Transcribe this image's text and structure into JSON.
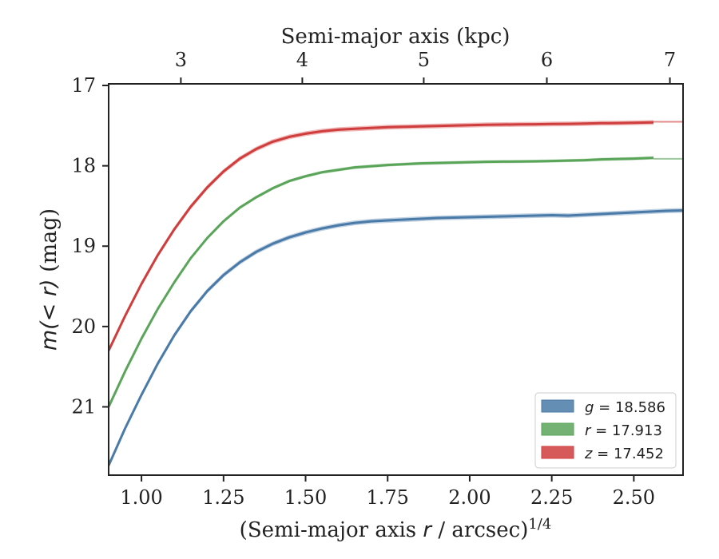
{
  "chart_data": {
    "type": "line",
    "xlabel_bottom": "(Semi-major axis r / arcsec)1/4",
    "xlabel_bottom_parts": {
      "pre": "(Semi-major axis ",
      "var": "r",
      "post": " / arcsec)",
      "sup": "1/4"
    },
    "xlabel_top": "Semi-major axis (kpc)",
    "ylabel": "m(< r) (mag)",
    "ylabel_parts": {
      "math": "m(< r)",
      "unit": " (mag)"
    },
    "xlim": [
      0.9,
      2.65
    ],
    "ylim": [
      21.85,
      16.98
    ],
    "y_inverted": true,
    "x_ticks": [
      1.0,
      1.25,
      1.5,
      1.75,
      2.0,
      2.25,
      2.5
    ],
    "x_tick_labels": [
      "1.00",
      "1.25",
      "1.50",
      "1.75",
      "2.00",
      "2.25",
      "2.50"
    ],
    "y_ticks": [
      17,
      18,
      19,
      20,
      21
    ],
    "y_tick_labels": [
      "17",
      "18",
      "19",
      "20",
      "21"
    ],
    "top_ticks_kpc": [
      3,
      4,
      5,
      6,
      7
    ],
    "top_tick_labels": [
      "3",
      "4",
      "5",
      "6",
      "7"
    ],
    "top_tick_positions_x": [
      1.12,
      1.49,
      1.86,
      2.235,
      2.61
    ],
    "legend_position": "bottom-right",
    "grid": false,
    "series": [
      {
        "name": "g = 18.586",
        "legend_var": "g",
        "legend_value": "= 18.586",
        "color": "#4a7aa8",
        "x": [
          0.9,
          0.95,
          1.0,
          1.05,
          1.1,
          1.15,
          1.2,
          1.25,
          1.3,
          1.35,
          1.4,
          1.45,
          1.5,
          1.55,
          1.6,
          1.65,
          1.7,
          1.75,
          1.8,
          1.85,
          1.9,
          1.95,
          2.0,
          2.05,
          2.1,
          2.15,
          2.2,
          2.25,
          2.3,
          2.35,
          2.4,
          2.45,
          2.5,
          2.55,
          2.6,
          2.65
        ],
        "y": [
          21.73,
          21.27,
          20.85,
          20.46,
          20.11,
          19.81,
          19.56,
          19.36,
          19.2,
          19.07,
          18.97,
          18.89,
          18.83,
          18.78,
          18.74,
          18.71,
          18.69,
          18.68,
          18.67,
          18.66,
          18.65,
          18.645,
          18.64,
          18.635,
          18.63,
          18.625,
          18.62,
          18.615,
          18.62,
          18.61,
          18.6,
          18.59,
          18.58,
          18.57,
          18.56,
          18.555
        ],
        "band_width": 0.03
      },
      {
        "name": "r = 17.913",
        "legend_var": "r",
        "legend_value": "= 17.913",
        "color": "#5aa55a",
        "x": [
          0.9,
          0.95,
          1.0,
          1.05,
          1.1,
          1.15,
          1.2,
          1.25,
          1.3,
          1.35,
          1.4,
          1.45,
          1.5,
          1.55,
          1.6,
          1.65,
          1.7,
          1.75,
          1.8,
          1.85,
          1.9,
          1.95,
          2.0,
          2.05,
          2.1,
          2.15,
          2.2,
          2.25,
          2.3,
          2.35,
          2.4,
          2.45,
          2.5,
          2.56
        ],
        "y": [
          21.0,
          20.56,
          20.15,
          19.78,
          19.45,
          19.15,
          18.9,
          18.69,
          18.52,
          18.39,
          18.28,
          18.19,
          18.13,
          18.08,
          18.05,
          18.02,
          18.005,
          17.99,
          17.98,
          17.97,
          17.965,
          17.96,
          17.955,
          17.95,
          17.948,
          17.946,
          17.944,
          17.94,
          17.935,
          17.93,
          17.92,
          17.915,
          17.91,
          17.9
        ],
        "band_width": 0.02,
        "extension": {
          "x": [
            2.56,
            2.65
          ],
          "y": 17.913
        }
      },
      {
        "name": "z = 17.452",
        "legend_var": "z",
        "legend_value": "= 17.452",
        "color": "#d03d3d",
        "x": [
          0.9,
          0.95,
          1.0,
          1.05,
          1.1,
          1.15,
          1.2,
          1.25,
          1.3,
          1.35,
          1.4,
          1.45,
          1.5,
          1.55,
          1.6,
          1.65,
          1.7,
          1.75,
          1.8,
          1.85,
          1.9,
          1.95,
          2.0,
          2.05,
          2.1,
          2.15,
          2.2,
          2.25,
          2.3,
          2.35,
          2.4,
          2.45,
          2.5,
          2.56
        ],
        "y": [
          20.3,
          19.87,
          19.47,
          19.11,
          18.79,
          18.51,
          18.27,
          18.07,
          17.91,
          17.79,
          17.7,
          17.64,
          17.6,
          17.57,
          17.55,
          17.54,
          17.53,
          17.52,
          17.515,
          17.51,
          17.505,
          17.5,
          17.495,
          17.49,
          17.487,
          17.485,
          17.483,
          17.48,
          17.478,
          17.475,
          17.47,
          17.468,
          17.465,
          17.46
        ],
        "band_width": 0.03,
        "extension": {
          "x": [
            2.56,
            2.65
          ],
          "y": 17.452
        }
      }
    ]
  }
}
